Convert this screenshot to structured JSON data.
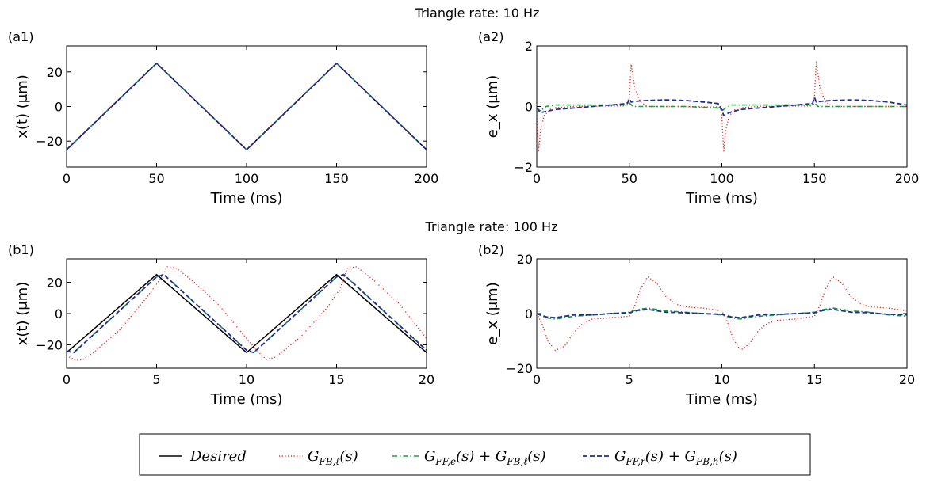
{
  "headers": {
    "top": "Triangle rate: 10 Hz",
    "middle": "Triangle rate: 100 Hz"
  },
  "colors": {
    "desired": "#000000",
    "fb": "#e8332a",
    "ff_e": "#1a9e3a",
    "ff_r": "#1f2e8f"
  },
  "legend": {
    "items": [
      {
        "key": "desired",
        "label": "— Desired",
        "style": "solid"
      },
      {
        "key": "fb",
        "label": "G_{FB,ℓ}(s)",
        "style": "dotted"
      },
      {
        "key": "ff_e",
        "label": "G_{FF,e}(s) + G_{FB,ℓ}(s)",
        "style": "dashdot"
      },
      {
        "key": "ff_r",
        "label": "G_{FF,r}(s) + G_{FB,h}(s)",
        "style": "dashed"
      }
    ]
  },
  "chart_data": [
    {
      "panel_label": "(a1)",
      "type": "line",
      "xlabel": "Time (ms)",
      "ylabel": "x(t)  (μm)",
      "xlim": [
        0,
        200
      ],
      "ylim": [
        -35,
        35
      ],
      "xticks": [
        0,
        50,
        100,
        150,
        200
      ],
      "yticks": [
        -20,
        0,
        20
      ],
      "ytick_labels": [
        "−20",
        "0",
        "20"
      ],
      "series": [
        {
          "key": "desired",
          "x": [
            0,
            50,
            100,
            150,
            200
          ],
          "y": [
            -25,
            25,
            -25,
            25,
            -25
          ]
        },
        {
          "key": "fb",
          "x": [
            0,
            50,
            100,
            150,
            200
          ],
          "y": [
            -25,
            25,
            -25,
            25,
            -25
          ]
        },
        {
          "key": "ff_e",
          "x": [
            0,
            50,
            100,
            150,
            200
          ],
          "y": [
            -25,
            25,
            -25,
            25,
            -25
          ]
        },
        {
          "key": "ff_r",
          "x": [
            0,
            50,
            100,
            150,
            200
          ],
          "y": [
            -25,
            25,
            -25,
            25,
            -25
          ]
        }
      ]
    },
    {
      "panel_label": "(a2)",
      "type": "line",
      "xlabel": "Time (ms)",
      "ylabel": "e_x (μm)",
      "xlim": [
        0,
        200
      ],
      "ylim": [
        -2,
        2
      ],
      "xticks": [
        0,
        50,
        100,
        150,
        200
      ],
      "yticks": [
        -2,
        0,
        2
      ],
      "ytick_labels": [
        "−2",
        "0",
        "2"
      ],
      "series": [
        {
          "key": "fb",
          "x": [
            0,
            1,
            2,
            4,
            8,
            20,
            48,
            50,
            51,
            53,
            56,
            60,
            80,
            99,
            100,
            101,
            102,
            104,
            108,
            120,
            148,
            150,
            151,
            153,
            156,
            160,
            180,
            200
          ],
          "y": [
            -0.1,
            -1.5,
            -0.8,
            -0.3,
            -0.05,
            0.0,
            0.02,
            0.3,
            1.4,
            0.6,
            0.15,
            0.0,
            0.0,
            -0.02,
            -0.3,
            -1.5,
            -0.8,
            -0.3,
            -0.05,
            0.0,
            0.02,
            0.3,
            1.5,
            0.6,
            0.15,
            0.0,
            0.0,
            0.0
          ]
        },
        {
          "key": "ff_e",
          "x": [
            0,
            2,
            5,
            10,
            20,
            30,
            40,
            49,
            50,
            52,
            55,
            60,
            80,
            99,
            100,
            102,
            105,
            110,
            120,
            130,
            140,
            149,
            150,
            152,
            155,
            160,
            180,
            200
          ],
          "y": [
            -0.05,
            -0.15,
            0.0,
            0.05,
            0.05,
            0.05,
            0.05,
            0.05,
            0.12,
            0.0,
            0.0,
            0.0,
            0.0,
            -0.05,
            -0.15,
            -0.05,
            0.05,
            0.05,
            0.05,
            0.05,
            0.05,
            0.05,
            0.12,
            0.0,
            0.0,
            0.0,
            0.0,
            0.0
          ]
        },
        {
          "key": "ff_r",
          "x": [
            0,
            2,
            10,
            20,
            30,
            40,
            49,
            50,
            51,
            55,
            60,
            70,
            80,
            90,
            98,
            100,
            101,
            104,
            110,
            120,
            130,
            140,
            149,
            150,
            151,
            155,
            160,
            170,
            180,
            190,
            200
          ],
          "y": [
            -0.05,
            -0.2,
            -0.1,
            -0.05,
            0.0,
            0.05,
            0.1,
            0.25,
            0.15,
            0.18,
            0.2,
            0.22,
            0.2,
            0.15,
            0.1,
            -0.1,
            -0.3,
            -0.2,
            -0.1,
            -0.05,
            0.0,
            0.05,
            0.1,
            0.3,
            0.15,
            0.18,
            0.2,
            0.22,
            0.2,
            0.15,
            0.05
          ]
        }
      ]
    },
    {
      "panel_label": "(b1)",
      "type": "line",
      "xlabel": "Time (ms)",
      "ylabel": "x(t)  (μm)",
      "xlim": [
        0,
        20
      ],
      "ylim": [
        -35,
        35
      ],
      "xticks": [
        0,
        5,
        10,
        15,
        20
      ],
      "yticks": [
        -20,
        0,
        20
      ],
      "ytick_labels": [
        "−20",
        "0",
        "20"
      ],
      "series": [
        {
          "key": "desired",
          "x": [
            0,
            5,
            10,
            15,
            20
          ],
          "y": [
            -25,
            25,
            -25,
            25,
            -25
          ]
        },
        {
          "key": "fb",
          "x": [
            0,
            0.5,
            0.9,
            1.5,
            3,
            4.5,
            5.2,
            5.6,
            6.1,
            7,
            8.5,
            10,
            10.6,
            11.1,
            11.6,
            13,
            14.5,
            15.2,
            15.6,
            16.1,
            17,
            18.5,
            20
          ],
          "y": [
            -27,
            -30,
            -29.5,
            -25,
            -10,
            11,
            22,
            30,
            29,
            21,
            5,
            -16,
            -24,
            -29.5,
            -28,
            -15,
            4,
            16,
            29,
            30,
            22,
            6,
            -16
          ]
        },
        {
          "key": "ff_e",
          "x": [
            0,
            0.4,
            5,
            5.4,
            10,
            10.4,
            15,
            15.4,
            20
          ],
          "y": [
            -24,
            -25,
            23.5,
            25,
            -23.5,
            -25,
            23.5,
            25,
            -23.5
          ]
        },
        {
          "key": "ff_r",
          "x": [
            0,
            0.4,
            5,
            5.4,
            10,
            10.4,
            15,
            15.4,
            20
          ],
          "y": [
            -24,
            -25,
            23.5,
            25,
            -23.5,
            -25,
            23.5,
            25,
            -23.5
          ]
        }
      ]
    },
    {
      "panel_label": "(b2)",
      "type": "line",
      "xlabel": "Time (ms)",
      "ylabel": "e_x (μm)",
      "xlim": [
        0,
        20
      ],
      "ylim": [
        -20,
        20
      ],
      "xticks": [
        0,
        5,
        10,
        15,
        20
      ],
      "yticks": [
        -20,
        0,
        20
      ],
      "ytick_labels": [
        "−20",
        "0",
        "20"
      ],
      "series": [
        {
          "key": "fb",
          "x": [
            0,
            0.3,
            0.6,
            1,
            1.5,
            2,
            2.5,
            3,
            4,
            5,
            5.3,
            5.6,
            6,
            6.5,
            7,
            7.5,
            8,
            9,
            10,
            10.3,
            10.6,
            11,
            11.5,
            12,
            12.5,
            13,
            14,
            15,
            15.3,
            15.6,
            16,
            16.5,
            17,
            17.5,
            18,
            19,
            20
          ],
          "y": [
            0,
            -4,
            -10,
            -13.5,
            -12,
            -7,
            -3.5,
            -2,
            -1.5,
            -1,
            3,
            9,
            13.5,
            11,
            6,
            3.5,
            2.5,
            2,
            1,
            -3,
            -9,
            -13.5,
            -11,
            -6,
            -3.5,
            -2.5,
            -2,
            -1,
            3,
            9,
            13.5,
            11,
            6,
            3.5,
            2.5,
            2,
            1
          ]
        },
        {
          "key": "ff_e",
          "x": [
            0,
            0.5,
            1,
            2,
            3,
            4,
            5,
            5.5,
            6,
            7,
            8,
            9,
            10,
            10.5,
            11,
            12,
            13,
            14,
            15,
            15.5,
            16,
            17,
            18,
            19,
            20
          ],
          "y": [
            0,
            -1.5,
            -2,
            -1,
            -0.5,
            0,
            0.5,
            1.5,
            2,
            1,
            0.5,
            0,
            -0.5,
            -1.5,
            -2,
            -1,
            -0.5,
            0,
            0.5,
            1.5,
            2,
            1,
            0.5,
            -0.5,
            -1
          ]
        },
        {
          "key": "ff_r",
          "x": [
            0,
            0.5,
            1,
            2,
            3,
            4,
            5,
            5.5,
            6,
            7,
            8,
            9,
            10,
            10.5,
            11,
            12,
            13,
            14,
            15,
            15.5,
            16,
            17,
            18,
            19,
            20
          ],
          "y": [
            0,
            -1.2,
            -1.5,
            -0.5,
            -0.5,
            0,
            0.3,
            1.2,
            1.5,
            0.5,
            0.3,
            0,
            -0.3,
            -1.2,
            -1.5,
            -0.5,
            -0.3,
            0,
            0.3,
            1.2,
            1.5,
            0.5,
            0.3,
            -0.3,
            -0.5
          ]
        }
      ]
    }
  ]
}
